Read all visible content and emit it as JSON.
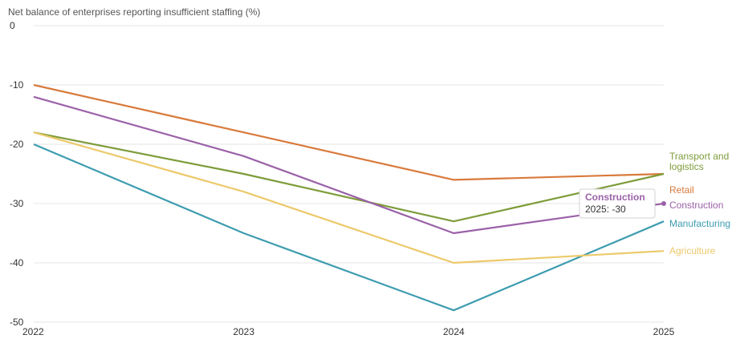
{
  "chart_data": {
    "type": "line",
    "ylabel": "Net balance of enterprises reporting insufficient staffing (%)",
    "x": [
      "2022",
      "2023",
      "2024",
      "2025"
    ],
    "ylim": [
      -50,
      0
    ],
    "yticks": [
      "0",
      "-10",
      "-20",
      "-30",
      "-40",
      "-50"
    ],
    "grid": true,
    "legend": "end-of-line labels",
    "series": [
      {
        "name": "Retail",
        "color": "#d97a3c",
        "values": [
          -10,
          -18,
          -26,
          -25
        ]
      },
      {
        "name": "Transport and logistics",
        "color": "#7e9c3a",
        "values": [
          -18,
          -25,
          -33,
          -25
        ]
      },
      {
        "name": "Construction",
        "color": "#9b61a8",
        "values": [
          -12,
          -22,
          -35,
          -30
        ]
      },
      {
        "name": "Manufacturing",
        "color": "#3d9cb0",
        "values": [
          -20,
          -35,
          -48,
          -33
        ]
      },
      {
        "name": "Agriculture",
        "color": "#ecc96a",
        "values": [
          -18,
          -28,
          -40,
          -38
        ]
      }
    ],
    "tooltip": {
      "title": "Construction",
      "text": "2025: -30"
    }
  }
}
